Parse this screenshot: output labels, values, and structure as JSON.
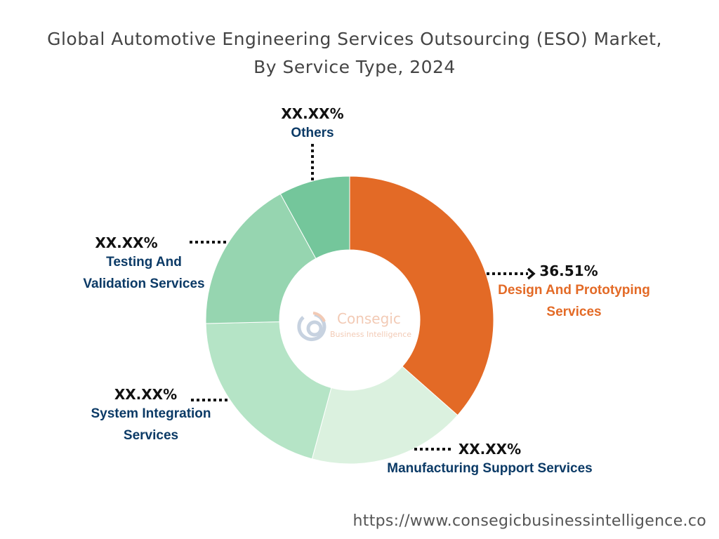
{
  "chart_data": {
    "type": "pie",
    "variant": "donut",
    "title": "Global Automotive Engineering Services Outsourcing (ESO) Market, By Service Type, 2024",
    "title_lines": [
      "Global Automotive Engineering Services Outsourcing (ESO) Market,",
      "By Service Type, 2024"
    ],
    "slices": [
      {
        "name": "Design And Prototyping Services",
        "label": "36.51%",
        "value": 36.51,
        "color": "#E36A26"
      },
      {
        "name": "Manufacturing Support Services",
        "label": "XX.XX%",
        "value": 17.7,
        "color": "#DBF1DF"
      },
      {
        "name": "System Integration Services",
        "label": "XX.XX%",
        "value": 20.4,
        "color": "#B5E4C6"
      },
      {
        "name": "Testing And Validation Services",
        "label": "XX.XX%",
        "value": 17.4,
        "color": "#96D5B0"
      },
      {
        "name": "Others",
        "label": "XX.XX%",
        "value": 7.99,
        "color": "#74C69B"
      }
    ]
  },
  "labels": {
    "design": {
      "pct": "36.51%",
      "line1": "Design And Prototyping",
      "line2": "Services"
    },
    "manufacturing": {
      "pct": "XX.XX%",
      "line1": "Manufacturing Support Services"
    },
    "system": {
      "pct": "XX.XX%",
      "line1": "System Integration",
      "line2": "Services"
    },
    "testing": {
      "pct": "XX.XX%",
      "line1": "Testing And",
      "line2": "Validation Services"
    },
    "others": {
      "pct": "XX.XX%",
      "line1": "Others"
    }
  },
  "logo": {
    "name": "Consegic",
    "tagline": "Business Intelligence"
  },
  "footer_url": "https://www.consegicbusinessintelligence.co"
}
